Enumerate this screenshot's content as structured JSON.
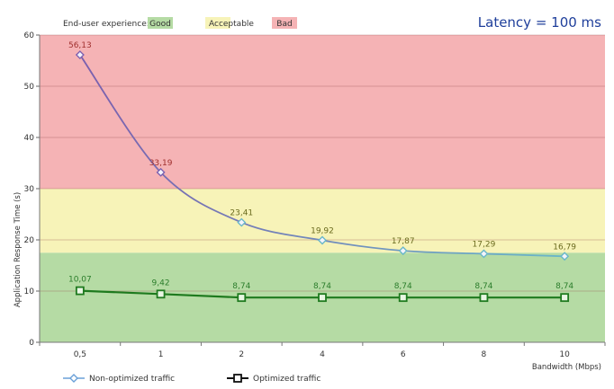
{
  "chart_data": {
    "type": "line",
    "title": "Latency = 100 ms",
    "xlabel": "Bandwidth (Mbps)",
    "ylabel": "Application Response Time (s)",
    "ylim": [
      0,
      60
    ],
    "y_ticks": [
      "0",
      "10",
      "20",
      "30",
      "40",
      "50",
      "60"
    ],
    "categories": [
      "0,5",
      "1",
      "2",
      "4",
      "6",
      "8",
      "10"
    ],
    "grid": true,
    "bands_legend_title": "End-user experience:",
    "bands": [
      {
        "name": "Good",
        "from": 0,
        "to": 17.5,
        "color": "#b5dba4"
      },
      {
        "name": "Acceptable",
        "from": 17.5,
        "to": 30,
        "color": "#f7f3b8"
      },
      {
        "name": "Bad",
        "from": 30,
        "to": 60,
        "color": "#f5b3b5"
      }
    ],
    "series": [
      {
        "name": "Non-optimized traffic",
        "values": [
          56.13,
          33.19,
          23.41,
          19.92,
          17.87,
          17.29,
          16.79
        ],
        "labels": [
          "56,13",
          "33,19",
          "23,41",
          "19,92",
          "17,87",
          "17,29",
          "16,79"
        ],
        "marker": "diamond",
        "colors_start": "#7b5fae",
        "colors_end": "#69b7c9",
        "label_colors": [
          "#a0302e",
          "#a0302e",
          "#6b6b1f",
          "#6b6b1f",
          "#6b6b1f",
          "#6b6b1f",
          "#6b6b1f"
        ]
      },
      {
        "name": "Optimized traffic",
        "values": [
          10.07,
          9.42,
          8.74,
          8.74,
          8.74,
          8.74,
          8.74
        ],
        "labels": [
          "10,07",
          "9,42",
          "8,74",
          "8,74",
          "8,74",
          "8,74",
          "8,74"
        ],
        "marker": "square",
        "color": "#1e7a1e",
        "label_color": "#2b7d2b"
      }
    ],
    "legend_position": "bottom-left"
  }
}
